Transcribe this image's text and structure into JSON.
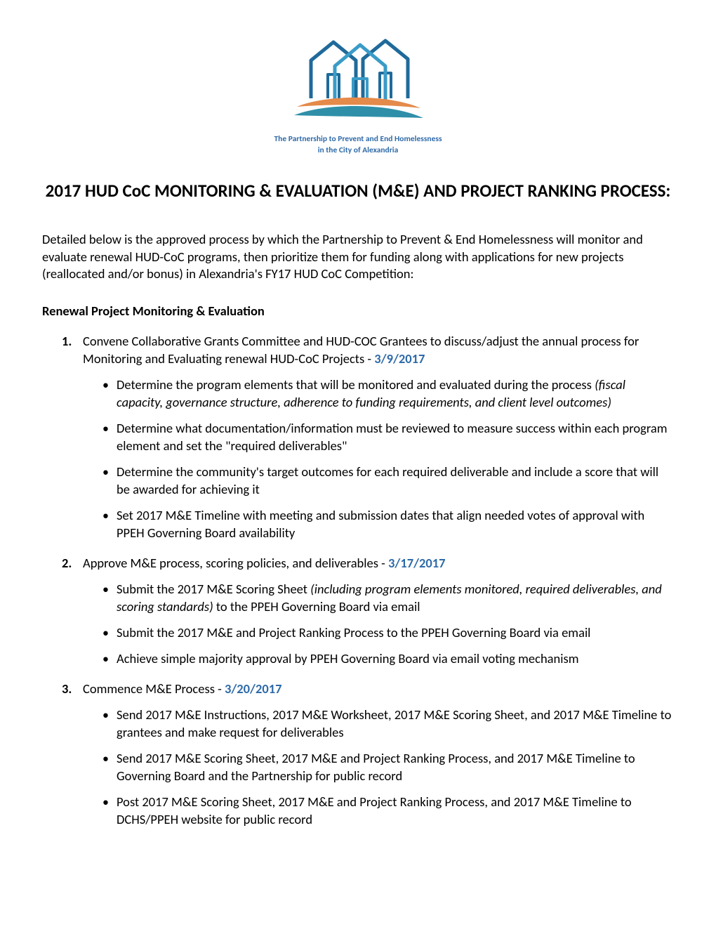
{
  "logo": {
    "caption_line1": "The Partnership to Prevent and End Homelessness",
    "caption_line2": "in the City of Alexandria",
    "caption_color": "#2e6aa8",
    "house_stroke": "#1f6a9a",
    "house_fill_light": "#3a9bc7",
    "swoosh_orange": "#e48a4a",
    "swoosh_teal": "#2f8fa8"
  },
  "title": "2017 HUD CoC MONITORING & EVALUATION (M&E) AND PROJECT RANKING PROCESS:",
  "intro": "Detailed below is the approved process by which the Partnership to Prevent & End Homelessness will monitor and evaluate renewal HUD-CoC programs, then prioritize them for funding along with applications for new projects (reallocated  and/or bonus) in Alexandria's FY17 HUD CoC Competition:",
  "section_head": "Renewal Project Monitoring & Evaluation",
  "date_color": "#2e6aa8",
  "steps": [
    {
      "text": "Convene Collaborative Grants Committee and HUD-COC Grantees to discuss/adjust the annual process for Monitoring and Evaluating renewal HUD-CoC Projects - ",
      "date": "3/9/2017",
      "subs": [
        {
          "pre": "Determine the program elements that will be monitored and evaluated during the process ",
          "italic": "(fiscal capacity, governance structure, adherence to funding requirements, and client level outcomes)",
          "post": ""
        },
        {
          "pre": "Determine what documentation/information must be reviewed to measure success within each program element and set the \"required deliverables\"",
          "italic": "",
          "post": ""
        },
        {
          "pre": "Determine the community's target outcomes for each required deliverable and include a score that will be awarded for achieving it",
          "italic": "",
          "post": ""
        },
        {
          "pre": "Set 2017 M&E Timeline with meeting and submission dates that align needed votes of approval with PPEH Governing Board availability",
          "italic": "",
          "post": ""
        }
      ]
    },
    {
      "text": "Approve M&E process, scoring policies, and deliverables - ",
      "date": "3/17/2017",
      "subs": [
        {
          "pre": "Submit the 2017 M&E Scoring Sheet ",
          "italic": "(including program elements monitored, required deliverables, and scoring standards)",
          "post": " to the PPEH Governing Board via email"
        },
        {
          "pre": "Submit the 2017 M&E and Project Ranking Process to the PPEH Governing Board via email",
          "italic": "",
          "post": ""
        },
        {
          "pre": "Achieve simple majority approval by PPEH Governing Board via email voting mechanism",
          "italic": "",
          "post": ""
        }
      ]
    },
    {
      "text": "Commence M&E Process - ",
      "date": "3/20/2017",
      "subs": [
        {
          "pre": "Send 2017 M&E Instructions, 2017 M&E Worksheet, 2017 M&E Scoring Sheet, and 2017 M&E Timeline to grantees and make request for deliverables",
          "italic": "",
          "post": ""
        },
        {
          "pre": "Send 2017 M&E Scoring Sheet, 2017 M&E and Project Ranking Process, and 2017 M&E Timeline to Governing Board and the Partnership for public record",
          "italic": "",
          "post": ""
        },
        {
          "pre": "Post 2017 M&E Scoring Sheet, 2017 M&E and Project Ranking Process, and 2017 M&E Timeline to DCHS/PPEH website for public record",
          "italic": "",
          "post": ""
        }
      ]
    }
  ]
}
